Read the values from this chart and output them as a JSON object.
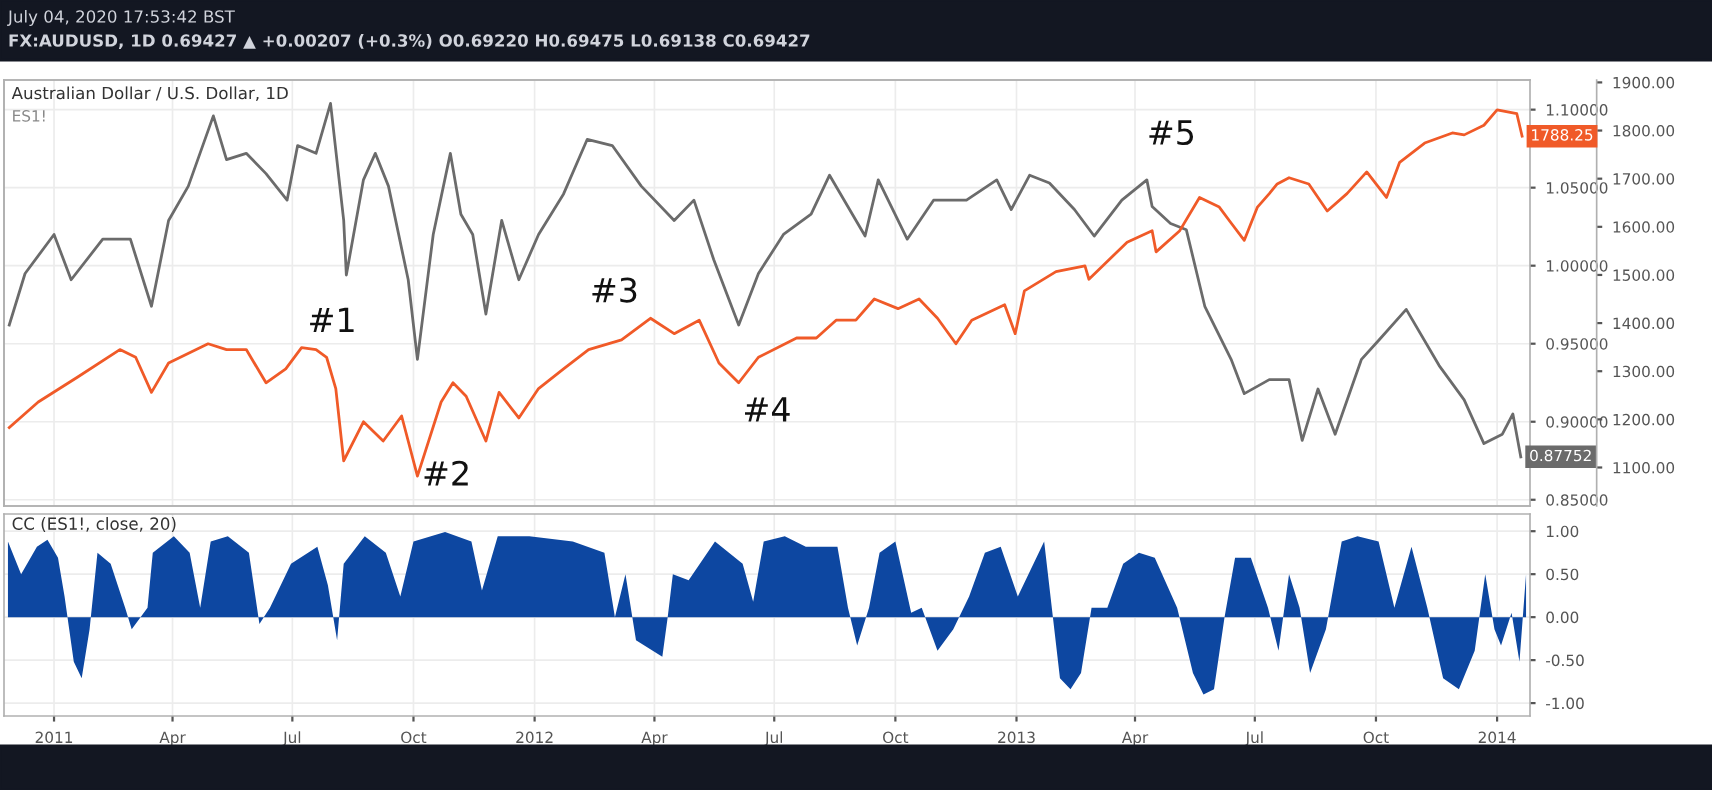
{
  "chart_data": [
    {
      "type": "line",
      "title": "Australian Dollar / U.S. Dollar, 1D",
      "subtitle": "ES1!",
      "annotations": [
        "July 04, 2020 17:53:42 BST",
        "FX:AUDUSD, 1D 0.69427 ▲ +0.00207 (+0.3%) O0.69220 H0.69475 L0.69138 C0.69427",
        "#1",
        "#2",
        "#3",
        "#4",
        "#5"
      ],
      "series": [
        {
          "color": "#6b6b6b",
          "x": [
            "2010-11-28",
            "2010-12-10",
            "2011-01-01",
            "2011-01-14",
            "2011-02-07",
            "2011-02-28",
            "2011-03-16",
            "2011-03-29",
            "2011-04-13",
            "2011-05-02",
            "2011-05-12",
            "2011-05-27",
            "2011-06-11",
            "2011-06-27",
            "2011-07-05",
            "2011-07-19",
            "2011-07-30",
            "2011-08-09",
            "2011-08-11",
            "2011-08-24",
            "2011-09-02",
            "2011-09-12",
            "2011-09-27",
            "2011-10-04",
            "2011-10-16",
            "2011-10-29",
            "2011-11-06",
            "2011-11-15",
            "2011-11-25",
            "2011-12-07",
            "2011-12-20",
            "2012-01-04",
            "2012-01-23",
            "2012-02-10",
            "2012-02-29",
            "2012-03-22",
            "2012-04-16",
            "2012-05-01",
            "2012-05-16",
            "2012-06-04",
            "2012-06-19",
            "2012-07-08",
            "2012-07-29",
            "2012-08-12",
            "2012-09-08",
            "2012-09-18",
            "2012-10-10",
            "2012-10-30",
            "2012-11-24",
            "2012-12-17",
            "2012-12-28",
            "2013-01-11",
            "2013-01-26",
            "2013-02-14",
            "2013-03-01",
            "2013-03-22",
            "2013-04-10",
            "2013-04-14",
            "2013-04-28",
            "2013-05-10",
            "2013-05-24",
            "2013-06-13",
            "2013-06-23",
            "2013-07-12",
            "2013-07-27",
            "2013-08-06",
            "2013-08-18",
            "2013-08-31",
            "2013-09-20",
            "2013-10-04",
            "2013-10-24",
            "2013-11-18",
            "2013-12-07",
            "2013-12-22",
            "2014-01-05",
            "2014-01-13",
            "2014-01-19"
          ],
          "values": [
            0.962,
            0.995,
            1.02,
            0.991,
            1.017,
            1.017,
            0.974,
            1.029,
            1.051,
            1.096,
            1.068,
            1.072,
            1.059,
            1.042,
            1.077,
            1.072,
            1.104,
            1.029,
            0.994,
            1.055,
            1.072,
            1.051,
            0.991,
            0.94,
            1.02,
            1.072,
            1.033,
            1.02,
            0.969,
            1.029,
            0.991,
            1.02,
            1.046,
            1.081,
            1.077,
            1.051,
            1.029,
            1.042,
            1.004,
            0.962,
            0.995,
            1.02,
            1.033,
            1.058,
            1.019,
            1.055,
            1.017,
            1.042,
            1.042,
            1.055,
            1.036,
            1.058,
            1.053,
            1.036,
            1.019,
            1.042,
            1.055,
            1.038,
            1.027,
            1.023,
            0.974,
            0.94,
            0.918,
            0.927,
            0.927,
            0.888,
            0.921,
            0.892,
            0.94,
            0.953,
            0.972,
            0.936,
            0.914,
            0.886,
            0.892,
            0.905,
            0.87752
          ],
          "value_labels": [
            null,
            null,
            null,
            null,
            null,
            null,
            null,
            null,
            null,
            null,
            null,
            null,
            null,
            null,
            null,
            null,
            null,
            null,
            null,
            null,
            null,
            null,
            null,
            null,
            null,
            null,
            null,
            null,
            null,
            null,
            null,
            null,
            null,
            null,
            null,
            null,
            null,
            null,
            null,
            null,
            null,
            null,
            null,
            null,
            null,
            null,
            null,
            null,
            null,
            null,
            null,
            null,
            null,
            null,
            null,
            null,
            null,
            null,
            null,
            null,
            null,
            null,
            null,
            null,
            null,
            null,
            null,
            null,
            null,
            null,
            null,
            null,
            null,
            null,
            null,
            null,
            "0.87752"
          ]
        },
        {
          "color": "#f05a28",
          "axis": "y2",
          "x": [
            "2010-11-28",
            "2010-12-20",
            "2011-01-19",
            "2011-02-20",
            "2011-03-04",
            "2011-03-16",
            "2011-03-29",
            "2011-04-28",
            "2011-05-12",
            "2011-05-27",
            "2011-06-11",
            "2011-06-26",
            "2011-07-08",
            "2011-07-19",
            "2011-07-27",
            "2011-08-03",
            "2011-08-09",
            "2011-08-24",
            "2011-09-08",
            "2011-09-22",
            "2011-10-04",
            "2011-10-22",
            "2011-10-31",
            "2011-11-10",
            "2011-11-25",
            "2011-12-05",
            "2011-12-20",
            "2012-01-04",
            "2012-01-23",
            "2012-02-11",
            "2012-03-07",
            "2012-03-29",
            "2012-04-16",
            "2012-05-05",
            "2012-05-20",
            "2012-06-04",
            "2012-06-19",
            "2012-07-18",
            "2012-08-02",
            "2012-08-17",
            "2012-09-01",
            "2012-09-15",
            "2012-10-03",
            "2012-10-19",
            "2012-11-02",
            "2012-11-16",
            "2012-11-28",
            "2012-12-23",
            "2012-12-31",
            "2013-01-07",
            "2013-01-31",
            "2013-02-22",
            "2013-02-25",
            "2013-03-26",
            "2013-04-14",
            "2013-04-17",
            "2013-05-05",
            "2013-05-20",
            "2013-06-04",
            "2013-06-13",
            "2013-06-23",
            "2013-07-03",
            "2013-07-12",
            "2013-07-18",
            "2013-07-27",
            "2013-08-11",
            "2013-08-25",
            "2013-09-09",
            "2013-09-24",
            "2013-10-09",
            "2013-10-19",
            "2013-11-07",
            "2013-11-28",
            "2013-12-07",
            "2013-12-22",
            "2014-01-01",
            "2014-01-16",
            "2014-01-20"
          ],
          "values": [
            1183,
            1236,
            1288,
            1345,
            1329,
            1256,
            1317,
            1357,
            1345,
            1345,
            1276,
            1305,
            1349,
            1345,
            1329,
            1264,
            1114,
            1195,
            1155,
            1207,
            1082,
            1236,
            1276,
            1248,
            1155,
            1256,
            1203,
            1264,
            1305,
            1345,
            1365,
            1410,
            1378,
            1406,
            1317,
            1276,
            1329,
            1369,
            1369,
            1406,
            1406,
            1450,
            1430,
            1450,
            1410,
            1357,
            1406,
            1438,
            1378,
            1467,
            1507,
            1519,
            1491,
            1568,
            1592,
            1548,
            1592,
            1661,
            1641,
            1608,
            1572,
            1641,
            1669,
            1689,
            1702,
            1689,
            1633,
            1669,
            1714,
            1661,
            1734,
            1774,
            1795,
            1791,
            1811,
            1843,
            1835,
            1788.25
          ],
          "value_labels": [
            null,
            null,
            null,
            null,
            null,
            null,
            null,
            null,
            null,
            null,
            null,
            null,
            null,
            null,
            null,
            null,
            null,
            null,
            null,
            null,
            null,
            null,
            null,
            null,
            null,
            null,
            null,
            null,
            null,
            null,
            null,
            null,
            null,
            null,
            null,
            null,
            null,
            null,
            null,
            null,
            null,
            null,
            null,
            null,
            null,
            null,
            null,
            null,
            null,
            null,
            null,
            null,
            null,
            null,
            null,
            null,
            null,
            null,
            null,
            null,
            null,
            null,
            null,
            null,
            null,
            null,
            null,
            null,
            null,
            null,
            null,
            null,
            null,
            null,
            null,
            null,
            null,
            "1788.25"
          ]
        }
      ],
      "xlim": [
        "2010-11-24",
        "2014-01-26"
      ],
      "xticks": [
        {
          "value": "2011-01-01",
          "label": null
        },
        {
          "value": "2011-04-01",
          "label": null
        },
        {
          "value": "2011-07-01",
          "label": null
        },
        {
          "value": "2011-10-01",
          "label": null
        },
        {
          "value": "2012-01-01",
          "label": null
        },
        {
          "value": "2012-04-01",
          "label": null
        },
        {
          "value": "2012-07-01",
          "label": null
        },
        {
          "value": "2012-10-01",
          "label": null
        },
        {
          "value": "2013-01-01",
          "label": null
        },
        {
          "value": "2013-04-01",
          "label": null
        },
        {
          "value": "2013-07-01",
          "label": null
        },
        {
          "value": "2013-10-01",
          "label": null
        },
        {
          "value": "2014-01-01",
          "label": null
        }
      ],
      "ylim": [
        0.846,
        1.119
      ],
      "yticks": [
        {
          "value": 0.85,
          "label": "0.85000"
        },
        {
          "value": 0.9,
          "label": "0.90000"
        },
        {
          "value": 0.95,
          "label": "0.95000"
        },
        {
          "value": 1.0,
          "label": "1.00000"
        },
        {
          "value": 1.05,
          "label": "1.05000"
        },
        {
          "value": 1.1,
          "label": "1.10000"
        }
      ],
      "y2lim": [
        1020,
        1905
      ],
      "y2ticks": [
        {
          "value": 1100,
          "label": "1100.00"
        },
        {
          "value": 1200,
          "label": "1200.00"
        },
        {
          "value": 1300,
          "label": "1300.00"
        },
        {
          "value": 1400,
          "label": "1400.00"
        },
        {
          "value": 1500,
          "label": "1500.00"
        },
        {
          "value": 1600,
          "label": "1600.00"
        },
        {
          "value": 1700,
          "label": "1700.00"
        },
        {
          "value": 1800,
          "label": "1800.00"
        },
        {
          "value": 1900,
          "label": "1900.00"
        }
      ],
      "tick_labels": "y",
      "grid": true
    },
    {
      "type": "area",
      "title": "CC (ES1!, close, 20)",
      "series": [
        {
          "color": "#0d47a1",
          "x": [
            "2010-11-27",
            "2010-12-07",
            "2010-12-19",
            "2010-12-27",
            "2011-01-04",
            "2011-01-09",
            "2011-01-16",
            "2011-01-22",
            "2011-01-28",
            "2011-02-03",
            "2011-02-13",
            "2011-02-24",
            "2011-03-01",
            "2011-03-13",
            "2011-03-17",
            "2011-04-02",
            "2011-04-14",
            "2011-04-22",
            "2011-04-30",
            "2011-05-13",
            "2011-05-29",
            "2011-06-06",
            "2011-06-14",
            "2011-06-30",
            "2011-07-20",
            "2011-07-28",
            "2011-08-04",
            "2011-08-09",
            "2011-08-25",
            "2011-09-10",
            "2011-09-21",
            "2011-10-01",
            "2011-10-25",
            "2011-11-14",
            "2011-11-22",
            "2011-12-04",
            "2011-12-28",
            "2012-01-30",
            "2012-02-23",
            "2012-03-02",
            "2012-03-10",
            "2012-03-18",
            "2012-04-07",
            "2012-04-11",
            "2012-04-15",
            "2012-04-27",
            "2012-05-17",
            "2012-06-07",
            "2012-06-15",
            "2012-06-23",
            "2012-07-09",
            "2012-07-25",
            "2012-08-18",
            "2012-08-26",
            "2012-09-02",
            "2012-09-11",
            "2012-09-19",
            "2012-10-01",
            "2012-10-13",
            "2012-10-21",
            "2012-11-02",
            "2012-11-14",
            "2012-11-26",
            "2012-12-08",
            "2012-12-20",
            "2013-01-02",
            "2013-01-22",
            "2013-02-03",
            "2013-02-11",
            "2013-02-19",
            "2013-02-27",
            "2013-03-11",
            "2013-03-23",
            "2013-04-04",
            "2013-04-16",
            "2013-05-03",
            "2013-05-15",
            "2013-05-23",
            "2013-05-31",
            "2013-06-08",
            "2013-06-16",
            "2013-06-28",
            "2013-07-11",
            "2013-07-19",
            "2013-07-27",
            "2013-08-04",
            "2013-08-12",
            "2013-08-24",
            "2013-09-05",
            "2013-09-17",
            "2013-10-03",
            "2013-10-15",
            "2013-10-28",
            "2013-11-09",
            "2013-11-21",
            "2013-12-03",
            "2013-12-15",
            "2013-12-23",
            "2013-12-30",
            "2014-01-04",
            "2014-01-12",
            "2014-01-18",
            "2014-01-23"
          ],
          "values": [
            0.88,
            0.5,
            0.82,
            0.9,
            0.69,
            0.24,
            -0.52,
            -0.71,
            -0.14,
            0.75,
            0.62,
            0.11,
            -0.14,
            0.11,
            0.75,
            0.94,
            0.75,
            0.11,
            0.88,
            0.94,
            0.75,
            -0.08,
            0.11,
            0.62,
            0.82,
            0.37,
            -0.27,
            0.62,
            0.94,
            0.75,
            0.24,
            0.88,
            0.99,
            0.88,
            0.31,
            0.94,
            0.94,
            0.88,
            0.75,
            0.0,
            0.5,
            -0.27,
            -0.46,
            -0.01,
            0.5,
            0.43,
            0.88,
            0.62,
            0.18,
            0.88,
            0.94,
            0.82,
            0.82,
            0.11,
            -0.33,
            0.11,
            0.75,
            0.88,
            0.05,
            0.11,
            -0.39,
            -0.14,
            0.24,
            0.75,
            0.82,
            0.24,
            0.88,
            -0.71,
            -0.84,
            -0.65,
            0.11,
            0.11,
            0.62,
            0.75,
            0.69,
            0.11,
            -0.65,
            -0.9,
            -0.84,
            0.0,
            0.69,
            0.69,
            0.11,
            -0.39,
            0.5,
            0.11,
            -0.65,
            -0.14,
            0.88,
            0.94,
            0.88,
            0.11,
            0.82,
            0.11,
            -0.71,
            -0.84,
            -0.39,
            0.5,
            -0.14,
            -0.33,
            0.05,
            -0.52,
            0.5
          ]
        }
      ],
      "xlim": [
        "2010-11-24",
        "2014-01-26"
      ],
      "xticks": [
        {
          "value": "2011-01-01",
          "label": "2011"
        },
        {
          "value": "2011-04-01",
          "label": "Apr"
        },
        {
          "value": "2011-07-01",
          "label": "Jul"
        },
        {
          "value": "2011-10-01",
          "label": "Oct"
        },
        {
          "value": "2012-01-01",
          "label": "2012"
        },
        {
          "value": "2012-04-01",
          "label": "Apr"
        },
        {
          "value": "2012-07-01",
          "label": "Jul"
        },
        {
          "value": "2012-10-01",
          "label": "Oct"
        },
        {
          "value": "2013-01-01",
          "label": "2013"
        },
        {
          "value": "2013-04-01",
          "label": "Apr"
        },
        {
          "value": "2013-07-01",
          "label": "Jul"
        },
        {
          "value": "2013-10-01",
          "label": "Oct"
        },
        {
          "value": "2014-01-01",
          "label": "2014"
        }
      ],
      "ylim": [
        -1.15,
        1.2
      ],
      "yticks": [
        {
          "value": -1.0,
          "label": "-1.00"
        },
        {
          "value": -0.5,
          "label": "-0.50"
        },
        {
          "value": 0.0,
          "label": "0.00"
        },
        {
          "value": 0.5,
          "label": "0.50"
        },
        {
          "value": 1.0,
          "label": "1.00"
        }
      ],
      "grid": true
    }
  ]
}
